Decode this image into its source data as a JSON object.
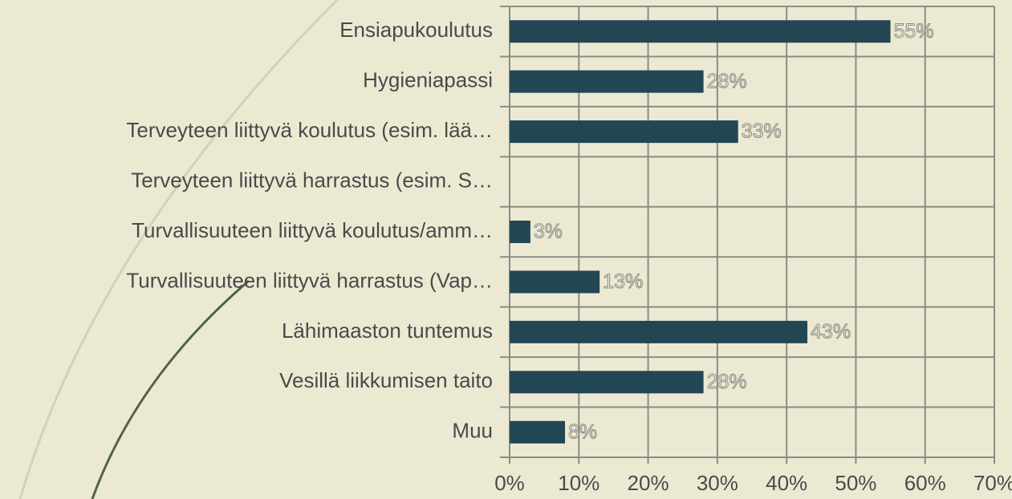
{
  "chart_data": {
    "type": "barh",
    "categories": [
      "Ensiapukoulutus",
      "Hygieniapassi",
      "Terveyteen liittyvä koulutus (esim. lää…",
      "Terveyteen liittyvä harrastus (esim. S…",
      "Turvallisuuteen liittyvä koulutus/amm…",
      "Turvallisuuteen liittyvä harrastus (Vap…",
      "Lähimaaston tuntemus",
      "Vesillä liikkumisen taito",
      "Muu"
    ],
    "values": [
      55,
      28,
      33,
      0,
      3,
      13,
      43,
      28,
      8
    ],
    "value_labels": [
      "55%",
      "28%",
      "33%",
      null,
      "3%",
      "13%",
      "43%",
      "28%",
      "8%"
    ],
    "color": "#234654",
    "xlim": [
      0,
      70
    ],
    "xticks": [
      {
        "value": 0,
        "label": "0%"
      },
      {
        "value": 10,
        "label": "10%"
      },
      {
        "value": 20,
        "label": "20%"
      },
      {
        "value": 30,
        "label": "30%"
      },
      {
        "value": 40,
        "label": "40%"
      },
      {
        "value": 50,
        "label": "50%"
      },
      {
        "value": 60,
        "label": "60%"
      },
      {
        "value": 70,
        "label": "70%"
      }
    ],
    "grid": true
  }
}
